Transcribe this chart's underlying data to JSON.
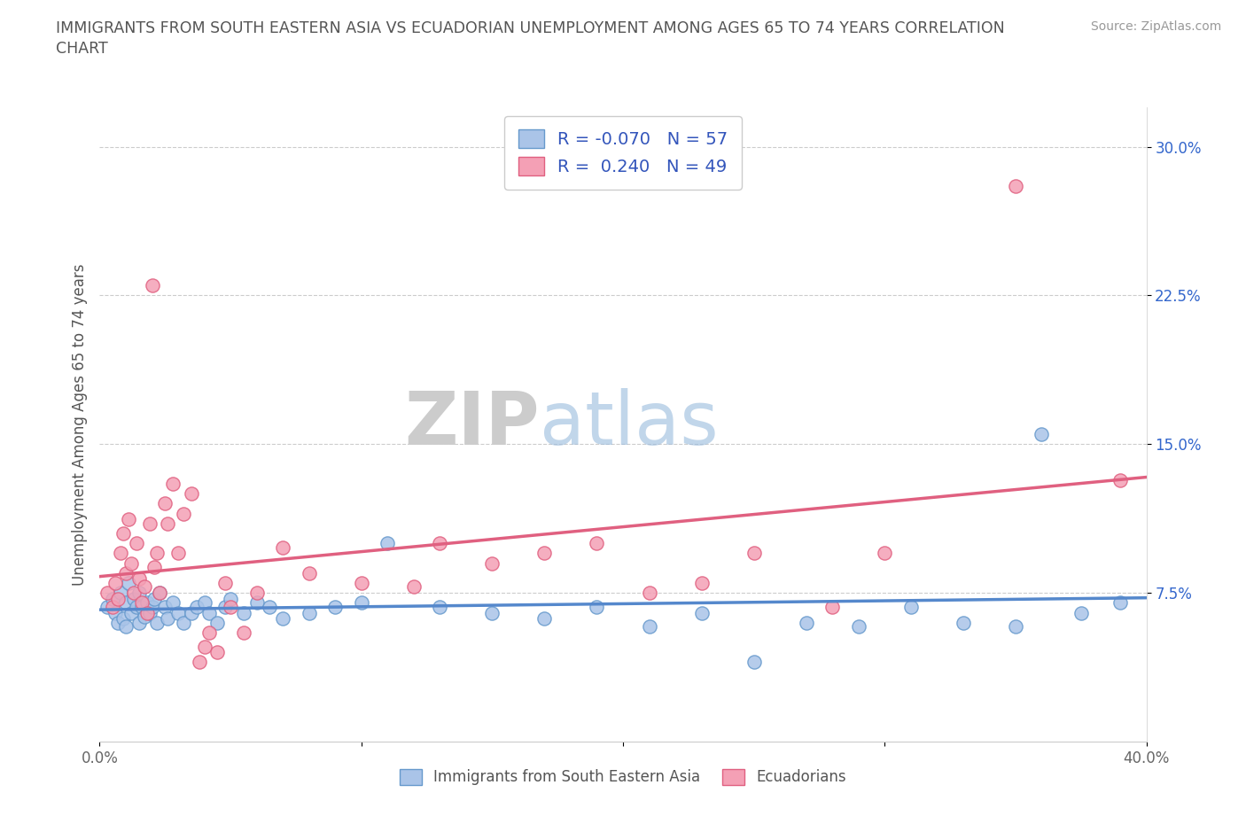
{
  "title_line1": "IMMIGRANTS FROM SOUTH EASTERN ASIA VS ECUADORIAN UNEMPLOYMENT AMONG AGES 65 TO 74 YEARS CORRELATION",
  "title_line2": "CHART",
  "source_text": "Source: ZipAtlas.com",
  "ylabel": "Unemployment Among Ages 65 to 74 years",
  "xlim": [
    0.0,
    0.4
  ],
  "ylim": [
    0.0,
    0.32
  ],
  "yticks": [
    0.075,
    0.15,
    0.225,
    0.3
  ],
  "yticklabels": [
    "7.5%",
    "15.0%",
    "22.5%",
    "30.0%"
  ],
  "watermark_zip": "ZIP",
  "watermark_atlas": "atlas",
  "R_blue": -0.07,
  "N_blue": 57,
  "R_pink": 0.24,
  "N_pink": 49,
  "blue_color": "#aac4e8",
  "pink_color": "#f4a0b5",
  "blue_edge_color": "#6699cc",
  "pink_edge_color": "#e06080",
  "blue_line_color": "#5588cc",
  "pink_line_color": "#e06080",
  "legend_r_color": "#3355bb",
  "grid_color": "#cccccc",
  "blue_scatter": [
    [
      0.003,
      0.068
    ],
    [
      0.005,
      0.072
    ],
    [
      0.006,
      0.065
    ],
    [
      0.007,
      0.06
    ],
    [
      0.008,
      0.075
    ],
    [
      0.009,
      0.062
    ],
    [
      0.01,
      0.07
    ],
    [
      0.01,
      0.058
    ],
    [
      0.011,
      0.08
    ],
    [
      0.012,
      0.065
    ],
    [
      0.013,
      0.072
    ],
    [
      0.014,
      0.068
    ],
    [
      0.015,
      0.075
    ],
    [
      0.015,
      0.06
    ],
    [
      0.016,
      0.068
    ],
    [
      0.017,
      0.063
    ],
    [
      0.018,
      0.07
    ],
    [
      0.019,
      0.065
    ],
    [
      0.02,
      0.068
    ],
    [
      0.021,
      0.072
    ],
    [
      0.022,
      0.06
    ],
    [
      0.023,
      0.075
    ],
    [
      0.025,
      0.068
    ],
    [
      0.026,
      0.062
    ],
    [
      0.028,
      0.07
    ],
    [
      0.03,
      0.065
    ],
    [
      0.032,
      0.06
    ],
    [
      0.035,
      0.065
    ],
    [
      0.037,
      0.068
    ],
    [
      0.04,
      0.07
    ],
    [
      0.042,
      0.065
    ],
    [
      0.045,
      0.06
    ],
    [
      0.048,
      0.068
    ],
    [
      0.05,
      0.072
    ],
    [
      0.055,
      0.065
    ],
    [
      0.06,
      0.07
    ],
    [
      0.065,
      0.068
    ],
    [
      0.07,
      0.062
    ],
    [
      0.08,
      0.065
    ],
    [
      0.09,
      0.068
    ],
    [
      0.1,
      0.07
    ],
    [
      0.11,
      0.1
    ],
    [
      0.13,
      0.068
    ],
    [
      0.15,
      0.065
    ],
    [
      0.17,
      0.062
    ],
    [
      0.19,
      0.068
    ],
    [
      0.21,
      0.058
    ],
    [
      0.23,
      0.065
    ],
    [
      0.25,
      0.04
    ],
    [
      0.27,
      0.06
    ],
    [
      0.29,
      0.058
    ],
    [
      0.31,
      0.068
    ],
    [
      0.33,
      0.06
    ],
    [
      0.35,
      0.058
    ],
    [
      0.36,
      0.155
    ],
    [
      0.375,
      0.065
    ],
    [
      0.39,
      0.07
    ]
  ],
  "pink_scatter": [
    [
      0.003,
      0.075
    ],
    [
      0.005,
      0.068
    ],
    [
      0.006,
      0.08
    ],
    [
      0.007,
      0.072
    ],
    [
      0.008,
      0.095
    ],
    [
      0.009,
      0.105
    ],
    [
      0.01,
      0.085
    ],
    [
      0.011,
      0.112
    ],
    [
      0.012,
      0.09
    ],
    [
      0.013,
      0.075
    ],
    [
      0.014,
      0.1
    ],
    [
      0.015,
      0.082
    ],
    [
      0.016,
      0.07
    ],
    [
      0.017,
      0.078
    ],
    [
      0.018,
      0.065
    ],
    [
      0.019,
      0.11
    ],
    [
      0.02,
      0.23
    ],
    [
      0.021,
      0.088
    ],
    [
      0.022,
      0.095
    ],
    [
      0.023,
      0.075
    ],
    [
      0.025,
      0.12
    ],
    [
      0.026,
      0.11
    ],
    [
      0.028,
      0.13
    ],
    [
      0.03,
      0.095
    ],
    [
      0.032,
      0.115
    ],
    [
      0.035,
      0.125
    ],
    [
      0.038,
      0.04
    ],
    [
      0.04,
      0.048
    ],
    [
      0.042,
      0.055
    ],
    [
      0.045,
      0.045
    ],
    [
      0.048,
      0.08
    ],
    [
      0.05,
      0.068
    ],
    [
      0.055,
      0.055
    ],
    [
      0.06,
      0.075
    ],
    [
      0.07,
      0.098
    ],
    [
      0.08,
      0.085
    ],
    [
      0.1,
      0.08
    ],
    [
      0.12,
      0.078
    ],
    [
      0.13,
      0.1
    ],
    [
      0.15,
      0.09
    ],
    [
      0.17,
      0.095
    ],
    [
      0.19,
      0.1
    ],
    [
      0.21,
      0.075
    ],
    [
      0.23,
      0.08
    ],
    [
      0.25,
      0.095
    ],
    [
      0.28,
      0.068
    ],
    [
      0.3,
      0.095
    ],
    [
      0.35,
      0.28
    ],
    [
      0.39,
      0.132
    ]
  ]
}
